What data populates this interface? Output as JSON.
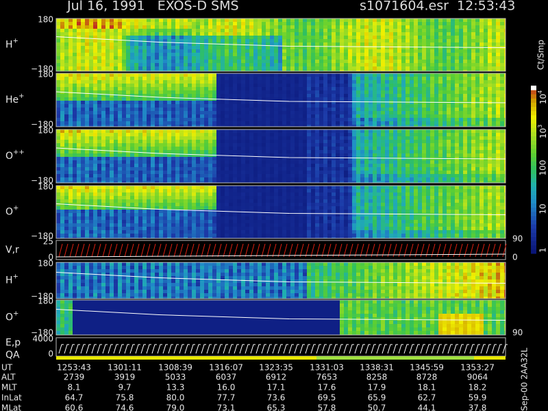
{
  "header": {
    "title": "Jul 16, 1991   EXOS-D SMS",
    "file": "s1071604.esr  12:53:43"
  },
  "panels": [
    {
      "label": "H",
      "superscript": "+",
      "ticks": [
        "180",
        "−180"
      ]
    },
    {
      "label": "He",
      "superscript": "+",
      "ticks": [
        "180",
        "−180"
      ]
    },
    {
      "label": "O",
      "superscript": "++",
      "ticks": [
        "180",
        "−180"
      ]
    },
    {
      "label": "O",
      "superscript": "+",
      "ticks": [
        "180",
        "−180"
      ]
    },
    {
      "label": "V,r",
      "ticks": [
        "25",
        "0"
      ],
      "right_ticks": [
        "90",
        "0"
      ]
    },
    {
      "label": "H",
      "superscript": "+",
      "ticks": [
        "180",
        "−180"
      ]
    },
    {
      "label": "O",
      "superscript": "+",
      "ticks": [
        "180",
        "−180"
      ],
      "right_ticks": [
        "90"
      ]
    },
    {
      "label": "E,p",
      "label2": "QA",
      "ticks": [
        "4000",
        "0"
      ]
    }
  ],
  "colorbar": {
    "unit": "Ct/Smp",
    "labels": [
      {
        "base": "10",
        "exp": "4"
      },
      {
        "base": "10",
        "exp": "3"
      },
      "100",
      "10",
      "1"
    ]
  },
  "table": {
    "rows": [
      {
        "label": "UT",
        "values": [
          "1253:43",
          "1301:11",
          "1308:39",
          "1316:07",
          "1323:35",
          "1331:03",
          "1338:31",
          "1345:59",
          "1353:27"
        ]
      },
      {
        "label": "ALT",
        "values": [
          "2739",
          "3919",
          "5033",
          "6037",
          "6912",
          "7653",
          "8258",
          "8728",
          "9064"
        ]
      },
      {
        "label": "MLT",
        "values": [
          "8.1",
          "9.7",
          "13.3",
          "16.0",
          "17.1",
          "17.6",
          "17.9",
          "18.1",
          "18.2"
        ]
      },
      {
        "label": "InLat",
        "values": [
          "64.7",
          "75.8",
          "80.0",
          "77.7",
          "73.6",
          "69.5",
          "65.9",
          "62.7",
          "59.9"
        ]
      },
      {
        "label": "MLat",
        "values": [
          "60.6",
          "74.6",
          "79.0",
          "73.1",
          "65.3",
          "57.8",
          "50.7",
          "44.1",
          "37.8"
        ]
      }
    ]
  },
  "footer": "Sep-00 2AA32L"
}
